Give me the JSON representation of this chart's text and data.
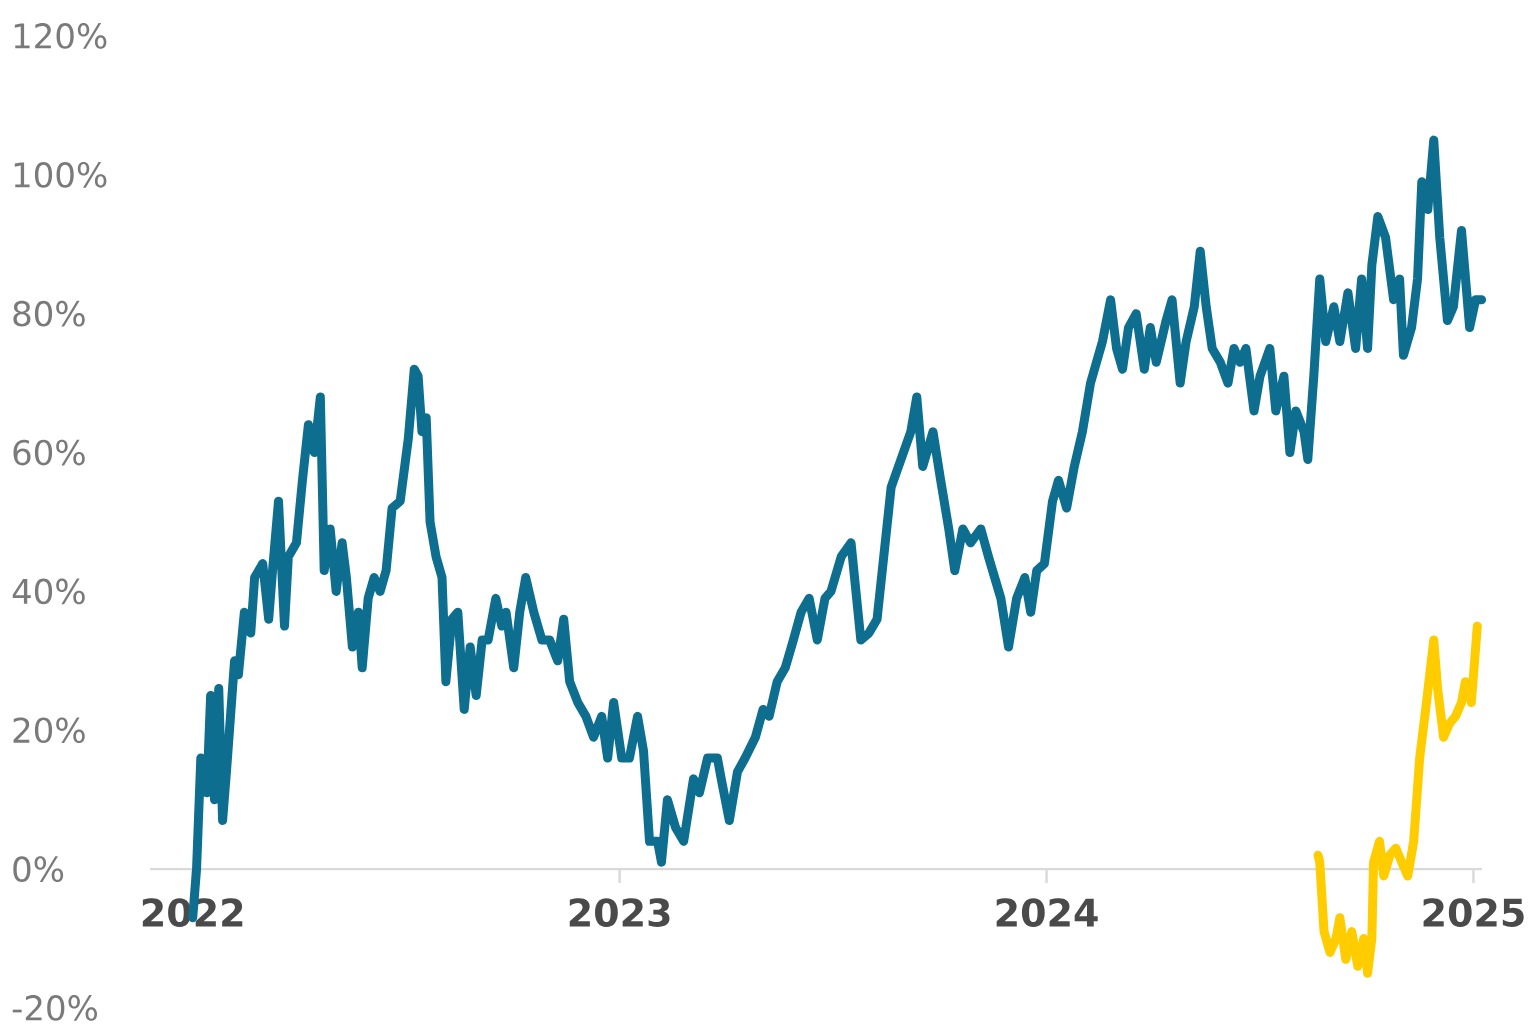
{
  "chart_data": {
    "type": "line",
    "xlim": [
      2021.9,
      2025.02
    ],
    "ylim": [
      -20,
      120
    ],
    "xticks": [
      2022,
      2023,
      2024,
      2025
    ],
    "yticks": [
      {
        "value": -20,
        "label": "-20%"
      },
      {
        "value": 0,
        "label": "0%"
      },
      {
        "value": 20,
        "label": "20%"
      },
      {
        "value": 40,
        "label": "40%"
      },
      {
        "value": 60,
        "label": "60%"
      },
      {
        "value": 80,
        "label": "80%"
      },
      {
        "value": 100,
        "label": "100%"
      },
      {
        "value": 120,
        "label": "120%"
      }
    ],
    "marker": "none",
    "line_style": "solid",
    "series": [
      {
        "color": "#0e6e8f",
        "x": [
          2022.0,
          2022.009,
          2022.019,
          2022.033,
          2022.042,
          2022.051,
          2022.061,
          2022.07,
          2022.079,
          2022.098,
          2022.107,
          2022.121,
          2022.136,
          2022.145,
          2022.164,
          2022.178,
          2022.187,
          2022.201,
          2022.215,
          2022.224,
          2022.243,
          2022.257,
          2022.271,
          2022.285,
          2022.299,
          2022.308,
          2022.322,
          2022.336,
          2022.35,
          2022.36,
          2022.374,
          2022.388,
          2022.397,
          2022.411,
          2022.425,
          2022.439,
          2022.453,
          2022.467,
          2022.486,
          2022.505,
          2022.519,
          2022.528,
          2022.537,
          2022.547,
          2022.556,
          2022.57,
          2022.584,
          2022.593,
          2022.607,
          2022.621,
          2022.636,
          2022.65,
          2022.664,
          2022.678,
          2022.692,
          2022.71,
          2022.724,
          2022.734,
          2022.752,
          2022.766,
          2022.78,
          2022.799,
          2022.818,
          2022.836,
          2022.855,
          2022.869,
          2022.883,
          2022.902,
          2022.921,
          2022.939,
          2022.958,
          2022.972,
          2022.986,
          2023.005,
          2023.023,
          2023.042,
          2023.056,
          2023.07,
          2023.089,
          2023.098,
          2023.112,
          2023.131,
          2023.15,
          2023.173,
          2023.187,
          2023.206,
          2023.229,
          2023.238,
          2023.257,
          2023.276,
          2023.294,
          2023.318,
          2023.336,
          2023.35,
          2023.369,
          2023.388,
          2023.407,
          2023.425,
          2023.444,
          2023.463,
          2023.481,
          2023.495,
          2023.519,
          2023.542,
          2023.565,
          2023.584,
          2023.603,
          2023.636,
          2023.659,
          2023.682,
          2023.696,
          2023.71,
          2023.734,
          2023.752,
          2023.771,
          2023.785,
          2023.804,
          2023.822,
          2023.846,
          2023.864,
          2023.893,
          2023.911,
          2023.93,
          2023.949,
          2023.963,
          2023.977,
          2023.995,
          2024.014,
          2024.028,
          2024.047,
          2024.065,
          2024.084,
          2024.103,
          2024.117,
          2024.131,
          2024.15,
          2024.164,
          2024.178,
          2024.192,
          2024.21,
          2024.229,
          2024.243,
          2024.257,
          2024.28,
          2024.294,
          2024.313,
          2024.327,
          2024.346,
          2024.36,
          2024.374,
          2024.388,
          2024.407,
          2024.425,
          2024.439,
          2024.453,
          2024.467,
          2024.486,
          2024.5,
          2024.523,
          2024.537,
          2024.556,
          2024.57,
          2024.584,
          2024.603,
          2024.612,
          2024.626,
          2024.64,
          2024.654,
          2024.673,
          2024.687,
          2024.706,
          2024.724,
          2024.738,
          2024.752,
          2024.762,
          2024.776,
          2024.794,
          2024.813,
          2024.827,
          2024.836,
          2024.855,
          2024.869,
          2024.879,
          2024.893,
          2024.907,
          2024.921,
          2024.939,
          2024.953,
          2024.972,
          2024.991,
          2025.005,
          2025.019
        ],
        "values": [
          -7,
          0,
          16,
          11,
          25,
          10,
          26,
          7,
          14,
          30,
          28,
          37,
          34,
          42,
          44,
          36,
          43,
          53,
          35,
          45,
          47,
          56,
          64,
          60,
          68,
          43,
          49,
          40,
          47,
          42,
          32,
          37,
          29,
          39,
          42,
          40,
          43,
          52,
          53,
          62,
          72,
          71,
          63,
          65,
          50,
          45,
          42,
          27,
          36,
          37,
          23,
          32,
          25,
          33,
          33,
          39,
          35,
          37,
          29,
          37,
          42,
          37,
          33,
          33,
          30,
          36,
          27,
          24,
          22,
          19,
          22,
          16,
          24,
          16,
          16,
          22,
          17,
          4,
          4,
          1,
          10,
          6,
          4,
          13,
          11,
          16,
          16,
          13,
          7,
          14,
          16,
          19,
          23,
          22,
          27,
          29,
          33,
          37,
          39,
          33,
          39,
          40,
          45,
          47,
          33,
          34,
          36,
          55,
          59,
          63,
          68,
          58,
          63,
          56,
          49,
          43,
          49,
          47,
          49,
          45,
          39,
          32,
          39,
          42,
          37,
          43,
          44,
          53,
          56,
          52,
          58,
          63,
          70,
          73,
          76,
          82,
          75,
          72,
          78,
          80,
          72,
          78,
          73,
          79,
          82,
          70,
          76,
          81,
          89,
          81,
          75,
          73,
          70,
          75,
          73,
          75,
          66,
          71,
          75,
          66,
          71,
          60,
          66,
          63,
          59,
          71,
          85,
          76,
          81,
          76,
          83,
          75,
          85,
          75,
          87,
          94,
          91,
          82,
          85,
          74,
          78,
          85,
          99,
          95,
          105,
          91,
          79,
          81,
          92,
          78,
          82,
          82
        ]
      },
      {
        "color": "#ffcc00",
        "x": [
          2024.636,
          2024.64,
          2024.65,
          2024.664,
          2024.678,
          2024.687,
          2024.701,
          2024.715,
          2024.729,
          2024.743,
          2024.752,
          2024.762,
          2024.766,
          2024.78,
          2024.79,
          2024.804,
          2024.818,
          2024.832,
          2024.846,
          2024.86,
          2024.874,
          2024.888,
          2024.907,
          2024.916,
          2024.93,
          2024.944,
          2024.958,
          2024.972,
          2024.981,
          2024.995,
          2025.009
        ],
        "values": [
          2,
          1,
          -9,
          -12,
          -10,
          -7,
          -13,
          -9,
          -14,
          -10,
          -15,
          -10,
          1,
          4,
          -1,
          2,
          3,
          1,
          -1,
          4,
          16,
          23,
          33,
          26,
          19,
          21,
          22,
          24,
          27,
          24,
          35
        ]
      }
    ]
  }
}
